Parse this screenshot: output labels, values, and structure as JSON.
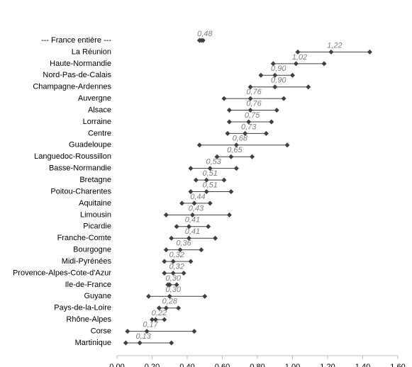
{
  "chart_data": {
    "type": "range-dot",
    "categories": [
      "--- France entière ---",
      "La Réunion",
      "Haute-Normandie",
      "Nord-Pas-de-Calais",
      "Champagne-Ardennes",
      "Auvergne",
      "Alsace",
      "Lorraine",
      "Centre",
      "Guadeloupe",
      "Languedoc-Roussillon",
      "Basse-Normandie",
      "Bretagne",
      "Poitou-Charentes",
      "Aquitaine",
      "Limousin",
      "Picardie",
      "Franche-Comte",
      "Bourgogne",
      "Midi-Pyrénées",
      "Provence-Alpes-Cote-d'Azur",
      "Ile-de-France",
      "Guyane",
      "Pays-de-la-Loire",
      "Rhône-Alpes",
      "Corse",
      "Martinique"
    ],
    "values": [
      0.48,
      1.22,
      1.02,
      0.9,
      0.9,
      0.76,
      0.76,
      0.75,
      0.73,
      0.68,
      0.65,
      0.53,
      0.51,
      0.51,
      0.44,
      0.43,
      0.41,
      0.41,
      0.36,
      0.32,
      0.32,
      0.3,
      0.3,
      0.28,
      0.22,
      0.17,
      0.13
    ],
    "value_labels": [
      "0,48",
      "1,22",
      "1,02",
      "0,90",
      "0,90",
      "0,76",
      "0,76",
      "0,75",
      "0,73",
      "0,68",
      "0,65",
      "0,53",
      "0,51",
      "0,51",
      "0,44",
      "0,43",
      "0,41",
      "0,41",
      "0,36",
      "0,32",
      "0,32",
      "0,30",
      "0,30",
      "0,28",
      "0,22",
      "0,17",
      "0,13"
    ],
    "min": [
      0.47,
      1.03,
      0.89,
      0.82,
      0.76,
      0.61,
      0.64,
      0.64,
      0.63,
      0.47,
      0.57,
      0.42,
      0.45,
      0.42,
      0.37,
      0.28,
      0.34,
      0.31,
      0.28,
      0.27,
      0.27,
      0.29,
      0.18,
      0.24,
      0.2,
      0.06,
      0.05
    ],
    "max": [
      0.49,
      1.44,
      1.18,
      1.0,
      1.09,
      0.95,
      0.91,
      0.88,
      0.85,
      0.97,
      0.77,
      0.68,
      0.61,
      0.65,
      0.53,
      0.64,
      0.52,
      0.56,
      0.48,
      0.42,
      0.38,
      0.34,
      0.5,
      0.35,
      0.27,
      0.44,
      0.31
    ],
    "color": "#404040",
    "label_color": "#7f7f7f",
    "xlim": [
      0,
      1.6
    ],
    "xticks": [
      {
        "value": 0,
        "label": "0,00"
      },
      {
        "value": 0.2,
        "label": "0,20"
      },
      {
        "value": 0.4,
        "label": "0,40"
      },
      {
        "value": 0.6,
        "label": "0,60"
      },
      {
        "value": 0.8,
        "label": "0,80"
      },
      {
        "value": 1.0,
        "label": "1,00"
      },
      {
        "value": 1.2,
        "label": "1,20"
      },
      {
        "value": 1.4,
        "label": "1,40"
      },
      {
        "value": 1.6,
        "label": "1,60"
      }
    ]
  }
}
